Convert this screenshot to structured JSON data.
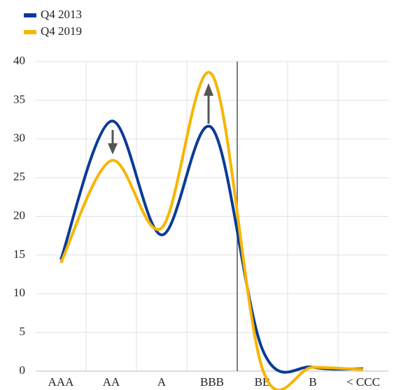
{
  "chart_data": {
    "type": "line",
    "categories": [
      "AAA",
      "AA",
      "A",
      "BBB",
      "BB",
      "B",
      "< CCC"
    ],
    "series": [
      {
        "name": "Q4 2013",
        "color": "#0b3b96",
        "values": [
          14.4,
          32.3,
          17.6,
          31.4,
          2.8,
          0.5,
          0.3
        ]
      },
      {
        "name": "Q4 2019",
        "color": "#f7b500",
        "values": [
          14.0,
          27.2,
          18.5,
          38.3,
          0.3,
          0.5,
          0.2
        ]
      }
    ],
    "ylim": [
      0,
      40
    ],
    "yticks": [
      0,
      5,
      10,
      15,
      20,
      25,
      30,
      35,
      40
    ],
    "grid": true
  }
}
